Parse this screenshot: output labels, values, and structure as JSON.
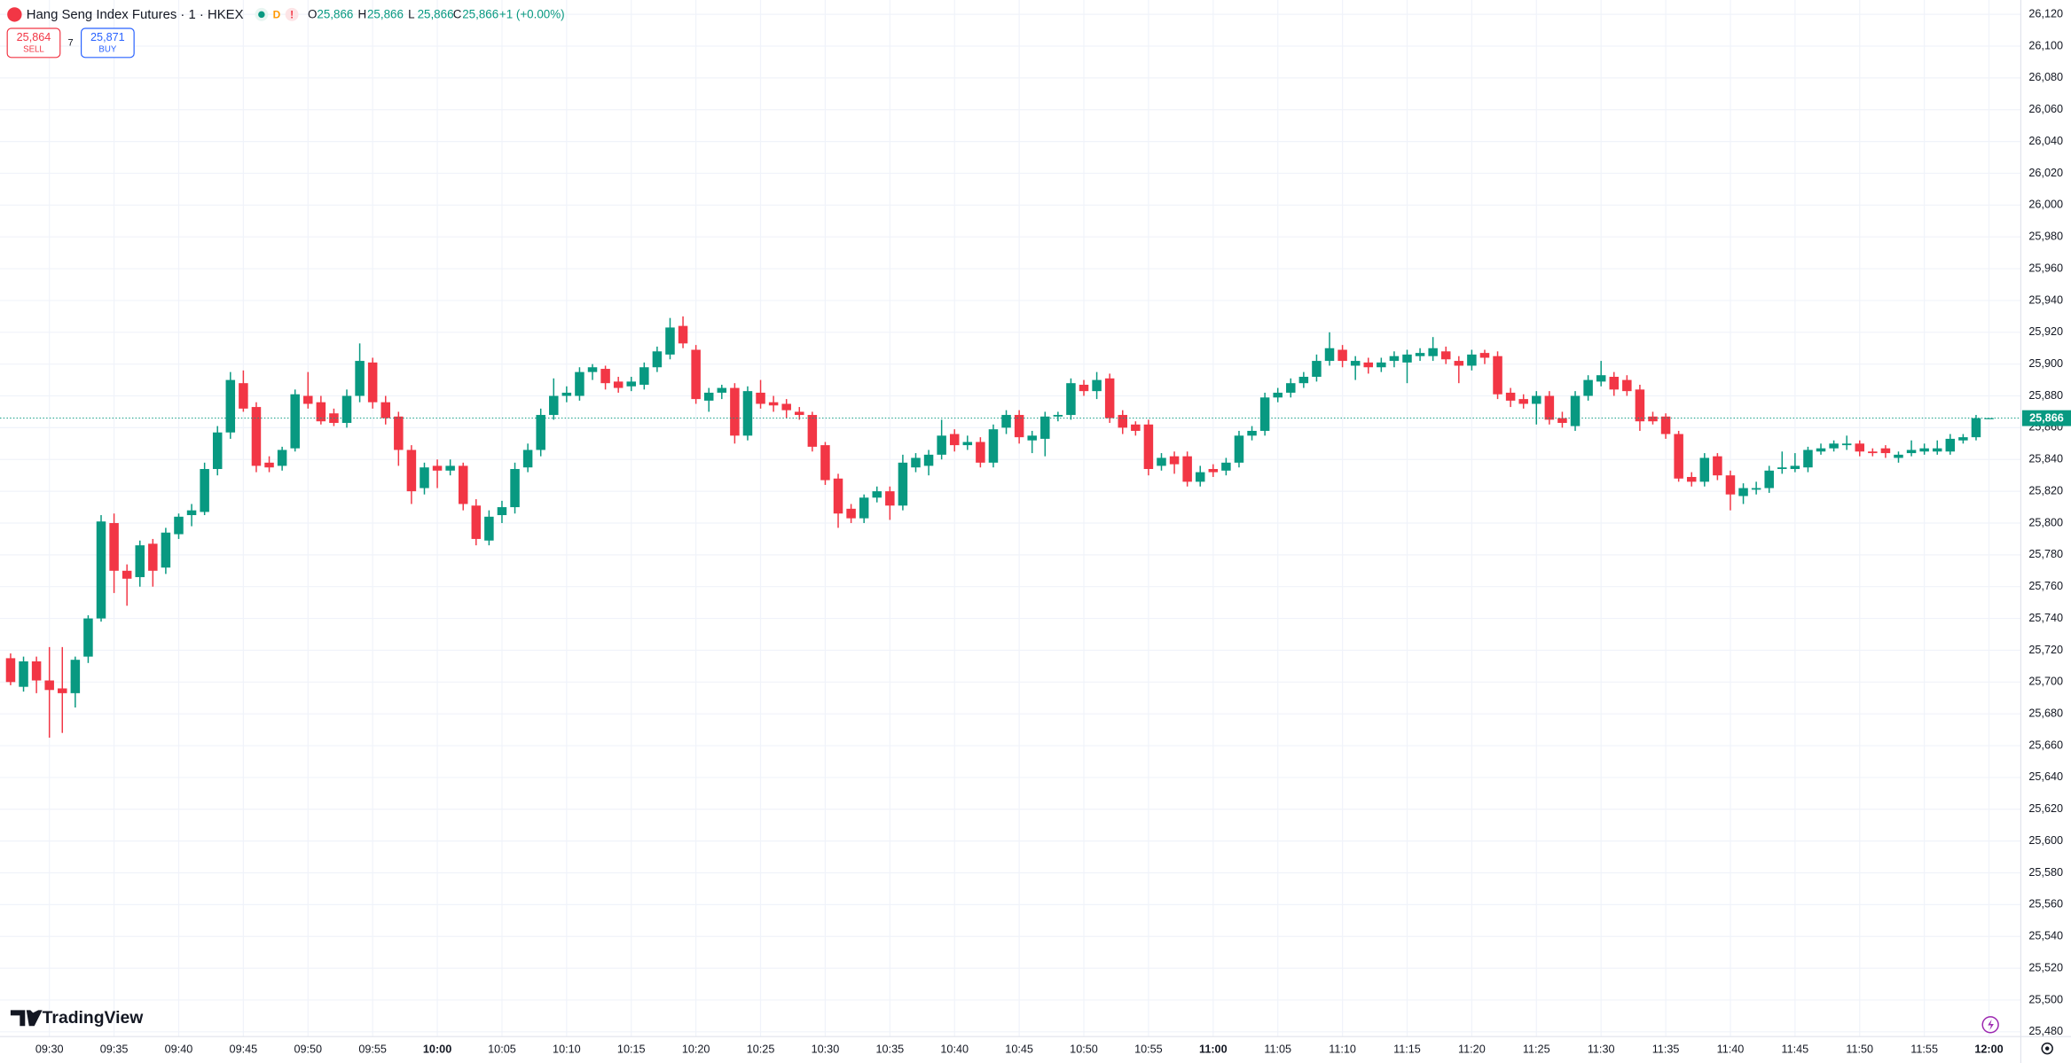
{
  "toolbar": {
    "title": "Hang Seng Index Futures · 1 · HKEX",
    "session": "D",
    "alert": "!",
    "legend": [
      {
        "key": "O",
        "value": "25,866"
      },
      {
        "key": "H",
        "value": "25,866"
      },
      {
        "key": "L",
        "value": "25,866"
      },
      {
        "key": "C",
        "value": "25,866"
      }
    ],
    "change": "+1 (+0.00%)",
    "sell": {
      "price": "25,864",
      "label": "SELL"
    },
    "spread": "7",
    "buy": {
      "price": "25,871",
      "label": "BUY"
    },
    "brand": "TradingView"
  },
  "chart_data": {
    "type": "candlestick",
    "grid": true,
    "up_color": "#089981",
    "down_color": "#f23645",
    "open": [
      25715,
      25697,
      25713,
      25701,
      25696,
      25693,
      25716,
      25740,
      25800,
      25770,
      25766,
      25787,
      25772,
      25793,
      25805,
      25807,
      25834,
      25857,
      25888,
      25873,
      25838,
      25836,
      25847,
      25880,
      25876,
      25869,
      25863,
      25880,
      25901,
      25876,
      25867,
      25846,
      25822,
      25836,
      25833,
      25836,
      25811,
      25789,
      25805,
      25810,
      25835,
      25846,
      25868,
      25880,
      25880,
      25895,
      25897,
      25889,
      25886,
      25887,
      25898,
      25906,
      25924,
      25909,
      25877,
      25882,
      25885,
      25855,
      25882,
      25876,
      25875,
      25870,
      25868,
      25849,
      25828,
      25809,
      25803,
      25816,
      25820,
      25811,
      25835,
      25836,
      25843,
      25856,
      25849,
      25851,
      25838,
      25860,
      25868,
      25852,
      25853,
      25867,
      25868,
      25887,
      25883,
      25891,
      25868,
      25862,
      25862,
      25836,
      25842,
      25842,
      25826,
      25834,
      25833,
      25838,
      25855,
      25858,
      25879,
      25882,
      25888,
      25892,
      25902,
      25909,
      25899,
      25901,
      25898,
      25902,
      25901,
      25905,
      25905,
      25908,
      25902,
      25899,
      25907,
      25905,
      25882,
      25878,
      25875,
      25880,
      25866,
      25861,
      25880,
      25889,
      25892,
      25890,
      25884,
      25867,
      25867,
      25856,
      25829,
      25826,
      25842,
      25830,
      25817,
      25821,
      25822,
      25834,
      25834,
      25835,
      25845,
      25847,
      25849,
      25850,
      25845,
      25847,
      25841,
      25844,
      25845,
      25845,
      25845,
      25852,
      25854,
      25866
    ],
    "high": [
      25718,
      25716,
      25716,
      25722,
      25722,
      25716,
      25742,
      25805,
      25806,
      25774,
      25789,
      25790,
      25797,
      25806,
      25812,
      25838,
      25861,
      25895,
      25896,
      25876,
      25842,
      25848,
      25884,
      25895,
      25880,
      25872,
      25884,
      25913,
      25904,
      25880,
      25870,
      25849,
      25838,
      25840,
      25840,
      25838,
      25815,
      25808,
      25814,
      25838,
      25850,
      25872,
      25891,
      25886,
      25898,
      25900,
      25899,
      25892,
      25892,
      25901,
      25911,
      25929,
      25930,
      25912,
      25885,
      25887,
      25888,
      25886,
      25890,
      25880,
      25878,
      25873,
      25870,
      25851,
      25831,
      25812,
      25818,
      25823,
      25823,
      25843,
      25844,
      25846,
      25865,
      25859,
      25855,
      25854,
      25862,
      25871,
      25871,
      25858,
      25870,
      25870,
      25891,
      25890,
      25895,
      25894,
      25871,
      25864,
      25865,
      25844,
      25845,
      25845,
      25836,
      25837,
      25841,
      25858,
      25861,
      25882,
      25885,
      25891,
      25895,
      25906,
      25920,
      25912,
      25905,
      25904,
      25904,
      25908,
      25909,
      25910,
      25917,
      25911,
      25905,
      25909,
      25909,
      25908,
      25885,
      25881,
      25883,
      25883,
      25870,
      25883,
      25893,
      25902,
      25895,
      25893,
      25887,
      25870,
      25869,
      25858,
      25832,
      25844,
      25844,
      25833,
      25825,
      25826,
      25836,
      25845,
      25844,
      25848,
      25850,
      25852,
      25855,
      25852,
      25847,
      25849,
      25845,
      25852,
      25850,
      25852,
      25856,
      25856,
      25868,
      25866
    ],
    "low": [
      25698,
      25694,
      25693,
      25665,
      25668,
      25684,
      25712,
      25738,
      25756,
      25748,
      25760,
      25760,
      25768,
      25790,
      25798,
      25805,
      25830,
      25853,
      25870,
      25832,
      25832,
      25833,
      25845,
      25872,
      25862,
      25861,
      25860,
      25876,
      25872,
      25862,
      25836,
      25812,
      25818,
      25822,
      25830,
      25808,
      25786,
      25786,
      25800,
      25806,
      25832,
      25842,
      25865,
      25876,
      25877,
      25890,
      25884,
      25882,
      25883,
      25884,
      25895,
      25903,
      25910,
      25875,
      25870,
      25878,
      25850,
      25852,
      25872,
      25870,
      25866,
      25865,
      25845,
      25824,
      25797,
      25800,
      25800,
      25813,
      25802,
      25808,
      25832,
      25830,
      25840,
      25845,
      25846,
      25835,
      25835,
      25856,
      25850,
      25844,
      25842,
      25864,
      25865,
      25880,
      25878,
      25863,
      25856,
      25855,
      25830,
      25833,
      25831,
      25823,
      25823,
      25829,
      25830,
      25835,
      25852,
      25855,
      25876,
      25879,
      25885,
      25889,
      25899,
      25898,
      25890,
      25894,
      25895,
      25898,
      25888,
      25902,
      25902,
      25900,
      25888,
      25896,
      25900,
      25878,
      25873,
      25872,
      25862,
      25862,
      25860,
      25858,
      25877,
      25886,
      25880,
      25880,
      25858,
      25862,
      25853,
      25826,
      25823,
      25823,
      25827,
      25808,
      25812,
      25818,
      25819,
      25831,
      25832,
      25832,
      25843,
      25845,
      25846,
      25842,
      25842,
      25841,
      25838,
      25842,
      25843,
      25843,
      25843,
      25850,
      25852,
      25866
    ],
    "close": [
      25700,
      25713,
      25701,
      25695,
      25693,
      25714,
      25740,
      25801,
      25770,
      25765,
      25786,
      25770,
      25794,
      25804,
      25808,
      25834,
      25857,
      25890,
      25872,
      25836,
      25835,
      25846,
      25881,
      25875,
      25864,
      25863,
      25880,
      25902,
      25876,
      25866,
      25846,
      25820,
      25835,
      25833,
      25836,
      25812,
      25790,
      25804,
      25810,
      25834,
      25846,
      25868,
      25880,
      25882,
      25895,
      25898,
      25888,
      25885,
      25889,
      25898,
      25908,
      25923,
      25913,
      25878,
      25882,
      25885,
      25855,
      25883,
      25875,
      25874,
      25871,
      25868,
      25848,
      25827,
      25806,
      25803,
      25816,
      25820,
      25811,
      25838,
      25841,
      25843,
      25855,
      25849,
      25851,
      25838,
      25859,
      25868,
      25854,
      25855,
      25867,
      25868,
      25888,
      25883,
      25890,
      25866,
      25860,
      25858,
      25834,
      25841,
      25837,
      25826,
      25832,
      25832,
      25838,
      25855,
      25858,
      25879,
      25882,
      25888,
      25892,
      25902,
      25910,
      25902,
      25902,
      25898,
      25901,
      25905,
      25906,
      25907,
      25910,
      25903,
      25899,
      25906,
      25904,
      25881,
      25877,
      25875,
      25880,
      25865,
      25863,
      25880,
      25890,
      25893,
      25884,
      25883,
      25864,
      25864,
      25856,
      25828,
      25826,
      25841,
      25830,
      25818,
      25822,
      25822,
      25833,
      25835,
      25836,
      25846,
      25847,
      25850,
      25850,
      25845,
      25844,
      25844,
      25843,
      25846,
      25847,
      25847,
      25853,
      25854,
      25866,
      25866
    ],
    "xlim": [
      -0.82,
      155.46
    ],
    "xticks": [
      {
        "value": 3,
        "label": "09:30"
      },
      {
        "value": 8,
        "label": "09:35"
      },
      {
        "value": 13,
        "label": "09:40"
      },
      {
        "value": 18,
        "label": "09:45"
      },
      {
        "value": 23,
        "label": "09:50"
      },
      {
        "value": 28,
        "label": "09:55"
      },
      {
        "value": 33,
        "label": "10:00"
      },
      {
        "value": 38,
        "label": "10:05"
      },
      {
        "value": 43,
        "label": "10:10"
      },
      {
        "value": 48,
        "label": "10:15"
      },
      {
        "value": 53,
        "label": "10:20"
      },
      {
        "value": 58,
        "label": "10:25"
      },
      {
        "value": 63,
        "label": "10:30"
      },
      {
        "value": 68,
        "label": "10:35"
      },
      {
        "value": 73,
        "label": "10:40"
      },
      {
        "value": 78,
        "label": "10:45"
      },
      {
        "value": 83,
        "label": "10:50"
      },
      {
        "value": 88,
        "label": "10:55"
      },
      {
        "value": 93,
        "label": "11:00"
      },
      {
        "value": 98,
        "label": "11:05"
      },
      {
        "value": 103,
        "label": "11:10"
      },
      {
        "value": 108,
        "label": "11:15"
      },
      {
        "value": 113,
        "label": "11:20"
      },
      {
        "value": 118,
        "label": "11:25"
      },
      {
        "value": 123,
        "label": "11:30"
      },
      {
        "value": 128,
        "label": "11:35"
      },
      {
        "value": 133,
        "label": "11:40"
      },
      {
        "value": 138,
        "label": "11:45"
      },
      {
        "value": 143,
        "label": "11:50"
      },
      {
        "value": 148,
        "label": "11:55"
      },
      {
        "value": 153,
        "label": "12:00"
      }
    ],
    "ylim": [
      25477,
      26129
    ],
    "yticks": [
      {
        "value": 25480,
        "label": "25,480"
      },
      {
        "value": 25500,
        "label": "25,500"
      },
      {
        "value": 25520,
        "label": "25,520"
      },
      {
        "value": 25540,
        "label": "25,540"
      },
      {
        "value": 25560,
        "label": "25,560"
      },
      {
        "value": 25580,
        "label": "25,580"
      },
      {
        "value": 25600,
        "label": "25,600"
      },
      {
        "value": 25620,
        "label": "25,620"
      },
      {
        "value": 25640,
        "label": "25,640"
      },
      {
        "value": 25660,
        "label": "25,660"
      },
      {
        "value": 25680,
        "label": "25,680"
      },
      {
        "value": 25700,
        "label": "25,700"
      },
      {
        "value": 25720,
        "label": "25,720"
      },
      {
        "value": 25740,
        "label": "25,740"
      },
      {
        "value": 25760,
        "label": "25,760"
      },
      {
        "value": 25780,
        "label": "25,780"
      },
      {
        "value": 25800,
        "label": "25,800"
      },
      {
        "value": 25820,
        "label": "25,820"
      },
      {
        "value": 25840,
        "label": "25,840"
      },
      {
        "value": 25860,
        "label": "25,860"
      },
      {
        "value": 25880,
        "label": "25,880"
      },
      {
        "value": 25900,
        "label": "25,900"
      },
      {
        "value": 25920,
        "label": "25,920"
      },
      {
        "value": 25940,
        "label": "25,940"
      },
      {
        "value": 25960,
        "label": "25,960"
      },
      {
        "value": 25980,
        "label": "25,980"
      },
      {
        "value": 26000,
        "label": "26,000"
      },
      {
        "value": 26020,
        "label": "26,020"
      },
      {
        "value": 26040,
        "label": "26,040"
      },
      {
        "value": 26060,
        "label": "26,060"
      },
      {
        "value": 26080,
        "label": "26,080"
      },
      {
        "value": 26100,
        "label": "26,100"
      },
      {
        "value": 26120,
        "label": "26,120"
      }
    ],
    "last_price": {
      "value": 25866,
      "label": "25,866"
    }
  }
}
